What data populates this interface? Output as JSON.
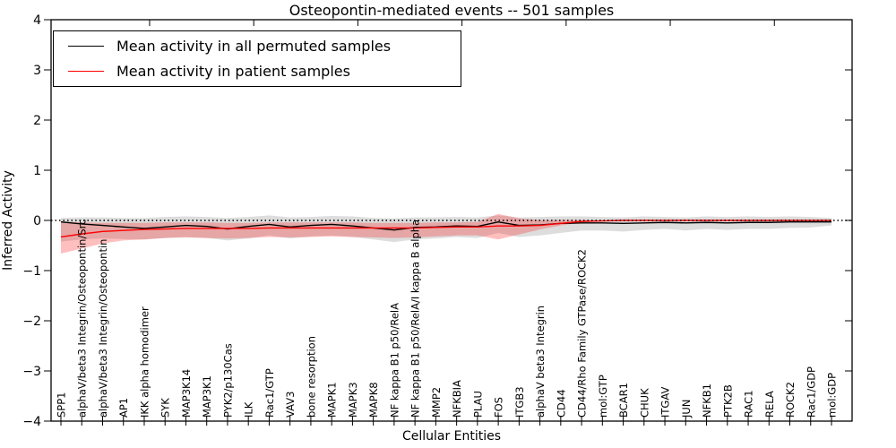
{
  "chart_data": {
    "type": "line",
    "title": "Osteopontin-mediated events -- 501 samples",
    "xlabel": "Cellular Entities",
    "ylabel": "Inferred Activity",
    "ylim": [
      -4,
      4
    ],
    "yticks": [
      -4,
      -3,
      -2,
      -1,
      0,
      1,
      2,
      3,
      4
    ],
    "grid": false,
    "legend_position": "upper left",
    "zero_line": {
      "style": "dotted",
      "color": "#000000",
      "y": 0
    },
    "categories": [
      "SPP1",
      "alphaV/beta3 Integrin/Osteopontin/Src",
      "alphaV/beta3 Integrin/Osteopontin",
      "AP1",
      "IKK alpha homodimer",
      "SYK",
      "MAP3K14",
      "MAP3K1",
      "PYK2/p130Cas",
      "ILK",
      "Rac1/GTP",
      "VAV3",
      "bone resorption",
      "MAPK1",
      "MAPK3",
      "MAPK8",
      "NF kappa B1 p50/RelA",
      "NF kappa B1 p50/RelA/I kappa B alpha",
      "MMP2",
      "NFKBIA",
      "PLAU",
      "FOS",
      "ITGB3",
      "alphaV beta3 Integrin",
      "CD44",
      "CD44/Rho Family GTPase/ROCK2",
      "mol:GTP",
      "BCAR1",
      "CHUK",
      "ITGAV",
      "JUN",
      "NFKB1",
      "PTK2B",
      "RAC1",
      "RELA",
      "ROCK2",
      "Rac1/GDP",
      "mol:GDP"
    ],
    "series": [
      {
        "name": "Mean activity in all permuted samples",
        "color": "#000000",
        "values": [
          -0.03,
          -0.07,
          -0.1,
          -0.13,
          -0.16,
          -0.13,
          -0.1,
          -0.12,
          -0.17,
          -0.12,
          -0.08,
          -0.13,
          -0.1,
          -0.08,
          -0.11,
          -0.15,
          -0.19,
          -0.14,
          -0.13,
          -0.11,
          -0.12,
          -0.03,
          -0.1,
          -0.09,
          -0.06,
          -0.05,
          -0.05,
          -0.06,
          -0.05,
          -0.04,
          -0.05,
          -0.04,
          -0.05,
          -0.04,
          -0.04,
          -0.03,
          -0.03,
          -0.03
        ]
      },
      {
        "name": "Mean activity in patient samples",
        "color": "#ff0000",
        "values": [
          -0.33,
          -0.27,
          -0.22,
          -0.2,
          -0.18,
          -0.17,
          -0.16,
          -0.16,
          -0.16,
          -0.16,
          -0.15,
          -0.15,
          -0.15,
          -0.15,
          -0.15,
          -0.15,
          -0.15,
          -0.15,
          -0.14,
          -0.13,
          -0.13,
          -0.11,
          -0.11,
          -0.1,
          -0.06,
          -0.02,
          -0.01,
          0.0,
          0.0,
          0.0,
          0.0,
          0.0,
          0.0,
          0.0,
          0.0,
          0.0,
          0.0,
          0.0
        ]
      }
    ],
    "bands": [
      {
        "name": "permuted-range",
        "color": "#808080",
        "opacity": 0.27,
        "upper": [
          0.05,
          0.06,
          0.06,
          0.05,
          0.05,
          0.07,
          0.08,
          0.07,
          0.05,
          0.07,
          0.1,
          0.06,
          0.07,
          0.09,
          0.08,
          0.05,
          0.04,
          0.06,
          0.06,
          0.07,
          0.06,
          0.1,
          0.06,
          0.07,
          0.08,
          0.08,
          0.07,
          0.06,
          0.08,
          0.07,
          0.06,
          0.08,
          0.07,
          0.08,
          0.07,
          0.08,
          0.07,
          0.05
        ],
        "lower": [
          -0.42,
          -0.38,
          -0.36,
          -0.37,
          -0.38,
          -0.35,
          -0.33,
          -0.35,
          -0.4,
          -0.36,
          -0.3,
          -0.36,
          -0.32,
          -0.3,
          -0.33,
          -0.38,
          -0.43,
          -0.38,
          -0.36,
          -0.33,
          -0.35,
          -0.25,
          -0.33,
          -0.3,
          -0.25,
          -0.2,
          -0.2,
          -0.22,
          -0.19,
          -0.17,
          -0.2,
          -0.17,
          -0.19,
          -0.17,
          -0.17,
          -0.15,
          -0.14,
          -0.1
        ]
      },
      {
        "name": "patient-range",
        "color": "#ff1a1a",
        "opacity": 0.28,
        "upper": [
          -0.02,
          -0.04,
          -0.05,
          -0.05,
          -0.05,
          -0.04,
          -0.04,
          -0.04,
          -0.05,
          -0.05,
          -0.04,
          -0.04,
          -0.04,
          -0.04,
          -0.04,
          -0.05,
          -0.05,
          -0.05,
          -0.04,
          -0.04,
          -0.03,
          0.13,
          0.04,
          0.01,
          0.01,
          0.01,
          0.0,
          0.0,
          0.0,
          0.0,
          0.0,
          0.0,
          0.0,
          0.0,
          0.0,
          0.0,
          0.0,
          0.0
        ],
        "lower": [
          -0.66,
          -0.56,
          -0.46,
          -0.4,
          -0.38,
          -0.35,
          -0.34,
          -0.35,
          -0.36,
          -0.35,
          -0.33,
          -0.34,
          -0.33,
          -0.32,
          -0.33,
          -0.34,
          -0.35,
          -0.34,
          -0.32,
          -0.3,
          -0.3,
          -0.38,
          -0.28,
          -0.18,
          -0.1,
          -0.04,
          -0.01,
          0.0,
          0.0,
          0.0,
          0.0,
          0.0,
          0.0,
          0.0,
          0.0,
          0.0,
          0.0,
          0.0
        ]
      }
    ]
  }
}
